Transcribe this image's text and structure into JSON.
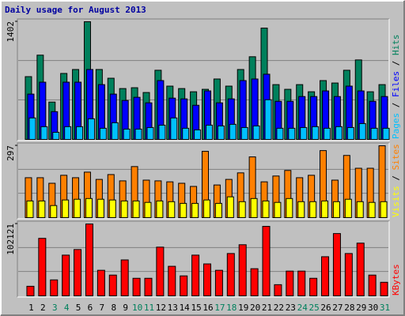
{
  "chart_data": [
    {
      "type": "bar",
      "title": "Daily usage for August 2013",
      "title_color": "#0000a0",
      "ylim": [
        0,
        1402
      ],
      "yticks": [
        1402
      ],
      "series": [
        {
          "name": "Hits",
          "color": "#00805c",
          "values": [
            748,
            1004,
            445,
            786,
            833,
            1402,
            833,
            729,
            606,
            616,
            559,
            824,
            635,
            606,
            568,
            597,
            720,
            635,
            833,
            985,
            1326,
            653,
            597,
            653,
            568,
            701,
            672,
            824,
            947,
            568,
            653
          ]
        },
        {
          "name": "Files",
          "color": "#0000ff",
          "values": [
            540,
            682,
            331,
            682,
            682,
            833,
            653,
            540,
            464,
            502,
            436,
            701,
            492,
            483,
            407,
            578,
            436,
            483,
            701,
            720,
            777,
            454,
            454,
            511,
            511,
            578,
            511,
            635,
            578,
            454,
            511
          ]
        },
        {
          "name": "Pages",
          "color": "#00c0ff",
          "values": [
            256,
            152,
            85,
            152,
            152,
            246,
            133,
            199,
            123,
            123,
            142,
            170,
            256,
            133,
            114,
            170,
            161,
            180,
            142,
            161,
            473,
            133,
            133,
            142,
            152,
            133,
            152,
            142,
            189,
            133,
            133
          ]
        }
      ]
    },
    {
      "type": "bar",
      "ylim": [
        0,
        297
      ],
      "yticks": [
        297
      ],
      "series": [
        {
          "name": "Sites",
          "color": "#ff8000",
          "values": [
            165,
            165,
            142,
            175,
            165,
            188,
            158,
            178,
            152,
            211,
            155,
            152,
            148,
            142,
            129,
            274,
            135,
            158,
            185,
            251,
            148,
            172,
            195,
            165,
            175,
            277,
            155,
            257,
            204,
            204,
            297
          ]
        },
        {
          "name": "Visits",
          "color": "#ffff00",
          "values": [
            69,
            69,
            50,
            73,
            76,
            79,
            76,
            73,
            69,
            69,
            63,
            69,
            66,
            59,
            59,
            73,
            59,
            86,
            66,
            79,
            69,
            63,
            79,
            66,
            66,
            69,
            66,
            76,
            66,
            63,
            66
          ]
        }
      ]
    },
    {
      "type": "bar",
      "ylim": [
        0,
        102121
      ],
      "yticks": [
        102121
      ],
      "categories": [
        "1",
        "2",
        "3",
        "4",
        "5",
        "6",
        "7",
        "8",
        "9",
        "10",
        "11",
        "12",
        "13",
        "14",
        "15",
        "16",
        "17",
        "18",
        "19",
        "20",
        "21",
        "22",
        "23",
        "24",
        "25",
        "26",
        "27",
        "28",
        "29",
        "30",
        "31"
      ],
      "category_colors": [
        "#000000",
        "#000000",
        "#00805c",
        "#00805c",
        "#000000",
        "#000000",
        "#000000",
        "#000000",
        "#000000",
        "#00805c",
        "#00805c",
        "#000000",
        "#000000",
        "#000000",
        "#000000",
        "#000000",
        "#00805c",
        "#00805c",
        "#000000",
        "#000000",
        "#000000",
        "#000000",
        "#000000",
        "#00805c",
        "#00805c",
        "#000000",
        "#000000",
        "#000000",
        "#000000",
        "#000000",
        "#00805c"
      ],
      "series": [
        {
          "name": "KBytes",
          "color": "#ff0000",
          "values": [
            13616,
            81698,
            22694,
            57870,
            65813,
            102121,
            36310,
            29502,
            51061,
            24963,
            24963,
            69217,
            41984,
            28367,
            57870,
            45388,
            36310,
            60139,
            72621,
            38580,
            98719,
            15886,
            35176,
            35176,
            24963,
            55601,
            88507,
            60139,
            74890,
            29502,
            19290
          ]
        }
      ]
    }
  ]
}
